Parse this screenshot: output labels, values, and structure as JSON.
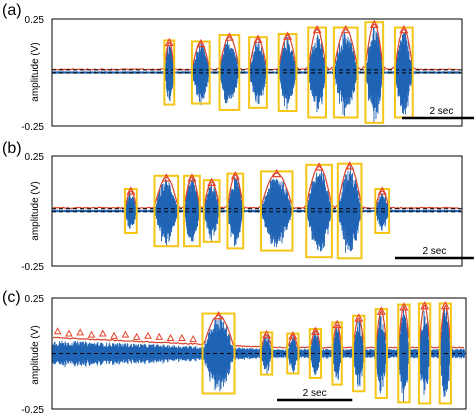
{
  "figure": {
    "background": "#ffffff"
  },
  "colors": {
    "signal": "#1f63b5",
    "envelope": "#d8442c",
    "box": "#f5c518",
    "peak_marker": "#e8452a",
    "threshold": "#000000"
  },
  "chart_data": [
    {
      "type": "line",
      "panel_label": "(a)",
      "ylabel": "amplitude (V)",
      "ytick_labels": [
        "0.25",
        "-0.25"
      ],
      "ylim": [
        -0.25,
        0.25
      ],
      "duration_s": 10.4,
      "threshold": 0.012,
      "scale_bar": {
        "label": "2 sec",
        "seconds": 2
      },
      "events": [
        {
          "start": 2.85,
          "end": 3.1,
          "peak": 0.14
        },
        {
          "start": 3.55,
          "end": 4.0,
          "peak": 0.135
        },
        {
          "start": 4.25,
          "end": 4.75,
          "peak": 0.165
        },
        {
          "start": 5.0,
          "end": 5.45,
          "peak": 0.155
        },
        {
          "start": 5.75,
          "end": 6.2,
          "peak": 0.17
        },
        {
          "start": 6.5,
          "end": 6.95,
          "peak": 0.2
        },
        {
          "start": 7.15,
          "end": 7.75,
          "peak": 0.2
        },
        {
          "start": 7.95,
          "end": 8.4,
          "peak": 0.225
        },
        {
          "start": 8.7,
          "end": 9.15,
          "peak": 0.2
        }
      ]
    },
    {
      "type": "line",
      "panel_label": "(b)",
      "ylabel": "amplitude (V)",
      "ytick_labels": [
        "0.25",
        "-0.25"
      ],
      "ylim": [
        -0.25,
        0.25
      ],
      "duration_s": 10.4,
      "threshold": 0.01,
      "scale_bar": {
        "label": "2 sec",
        "seconds": 2
      },
      "events": [
        {
          "start": 1.85,
          "end": 2.15,
          "peak": 0.09
        },
        {
          "start": 2.6,
          "end": 3.2,
          "peak": 0.15
        },
        {
          "start": 3.35,
          "end": 3.75,
          "peak": 0.15
        },
        {
          "start": 3.85,
          "end": 4.25,
          "peak": 0.13
        },
        {
          "start": 4.45,
          "end": 4.85,
          "peak": 0.16
        },
        {
          "start": 5.3,
          "end": 6.1,
          "peak": 0.17
        },
        {
          "start": 6.45,
          "end": 7.1,
          "peak": 0.2
        },
        {
          "start": 7.25,
          "end": 7.85,
          "peak": 0.205
        },
        {
          "start": 8.2,
          "end": 8.55,
          "peak": 0.09
        }
      ]
    },
    {
      "type": "line",
      "panel_label": "(c)",
      "ylabel": "amplitude (V)",
      "ytick_labels": [
        "0.25",
        "-0.25"
      ],
      "ylim": [
        -0.25,
        0.25
      ],
      "duration_s": 11.0,
      "threshold": 0.0,
      "scale_bar": {
        "label": "2 sec",
        "seconds": 2
      },
      "noise_peaks": [
        0.1,
        0.09,
        0.095,
        0.085,
        0.09,
        0.08,
        0.085,
        0.075,
        0.08,
        0.075,
        0.07,
        0.07,
        0.065
      ],
      "events": [
        {
          "start": 4.0,
          "end": 4.85,
          "peak": 0.17
        },
        {
          "start": 5.55,
          "end": 5.85,
          "peak": 0.085
        },
        {
          "start": 6.25,
          "end": 6.55,
          "peak": 0.08
        },
        {
          "start": 6.85,
          "end": 7.15,
          "peak": 0.1
        },
        {
          "start": 7.45,
          "end": 7.7,
          "peak": 0.13
        },
        {
          "start": 8.0,
          "end": 8.3,
          "peak": 0.16
        },
        {
          "start": 8.6,
          "end": 8.9,
          "peak": 0.19
        },
        {
          "start": 9.2,
          "end": 9.5,
          "peak": 0.21
        },
        {
          "start": 9.75,
          "end": 10.05,
          "peak": 0.215
        },
        {
          "start": 10.3,
          "end": 10.6,
          "peak": 0.215
        }
      ]
    }
  ]
}
